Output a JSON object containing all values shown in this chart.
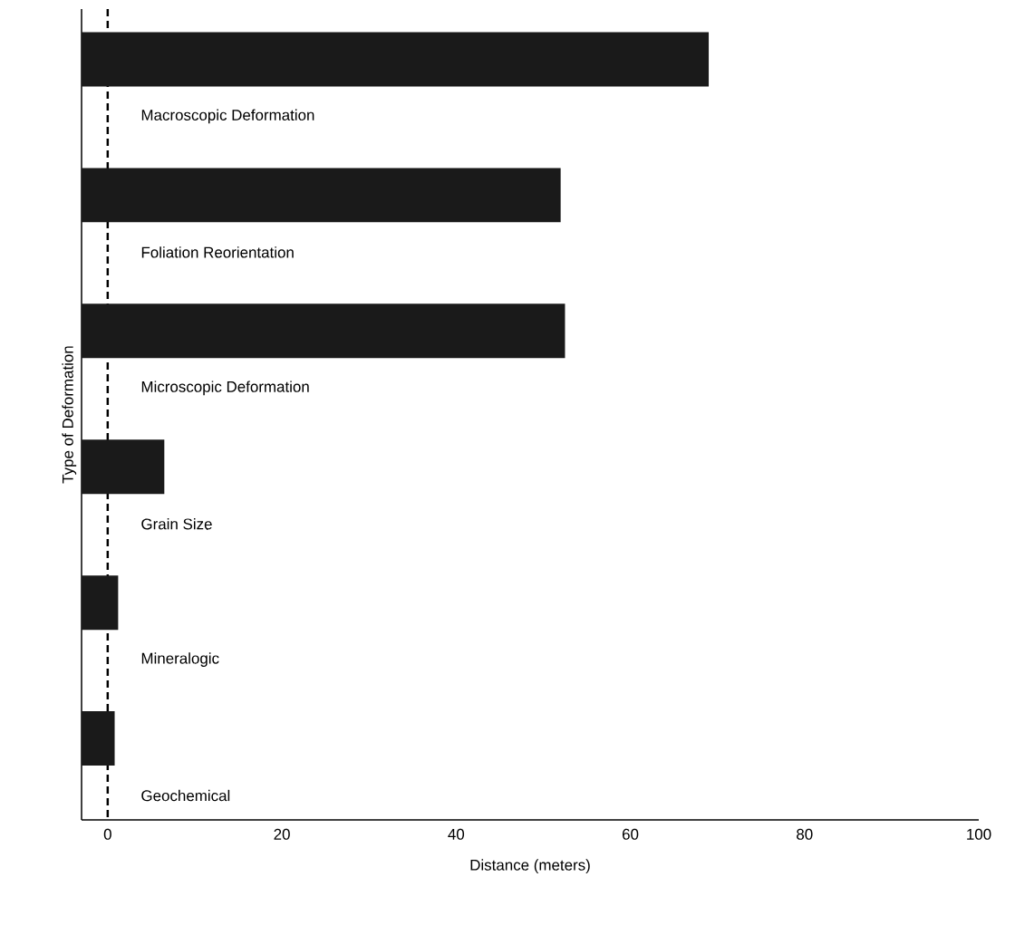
{
  "chart_data": {
    "type": "bar",
    "orientation": "horizontal",
    "categories": [
      "Macroscopic Deformation",
      "Foliation Reorientation",
      "Microscopic Deformation",
      "Grain Size",
      "Mineralogic",
      "Geochemical"
    ],
    "values": [
      72,
      55,
      55.5,
      9.5,
      4.2,
      3.8
    ],
    "base": [
      -3,
      -3,
      -3,
      -3,
      -3,
      -3
    ],
    "color": "#1a1a1a",
    "xlabel": "Distance (meters)",
    "ylabel": "Type of Deformation",
    "xlim": [
      -3,
      100
    ],
    "xticks": [
      0,
      20,
      40,
      60,
      80,
      100
    ],
    "ref_lines": [
      {
        "axis": "x",
        "value": 0,
        "color": "#000000",
        "line_style": "dashed"
      }
    ]
  }
}
